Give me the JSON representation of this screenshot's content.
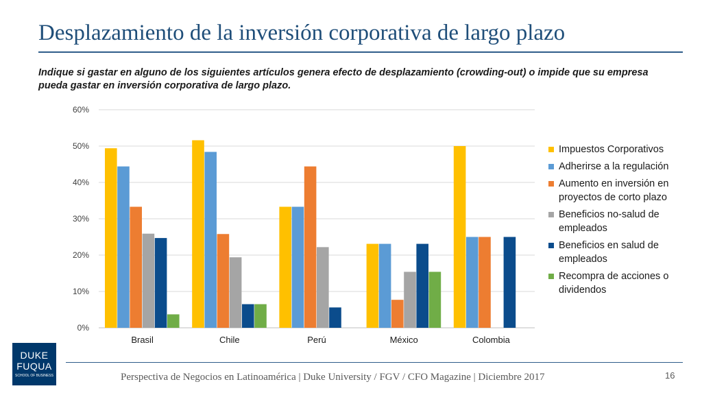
{
  "page": {
    "title": "Desplazamiento de la inversión corporativa de largo plazo",
    "subtitle": "Indique si gastar en alguno de los siguientes artículos genera efecto de desplazamiento (crowding-out) o impide que su empresa pueda gastar en inversión corporativa de largo plazo.",
    "footer": "Perspectiva de Negocios en Latinoamérica | Duke University / FGV / CFO Magazine | Diciembre 2017",
    "page_number": "16",
    "logo": {
      "line1": "DUKE",
      "line2": "FUQUA",
      "line3": "SCHOOL OF BUSINESS",
      "color": "#00386b"
    }
  },
  "chart_data": {
    "type": "bar",
    "title": "",
    "xlabel": "",
    "ylabel": "",
    "ylim": [
      0,
      60
    ],
    "yticks": [
      0,
      10,
      20,
      30,
      40,
      50,
      60
    ],
    "ytick_labels": [
      "0%",
      "10%",
      "20%",
      "30%",
      "40%",
      "50%",
      "60%"
    ],
    "grid": true,
    "legend_position": "right",
    "categories": [
      "Brasil",
      "Chile",
      "Perú",
      "México",
      "Colombia"
    ],
    "series": [
      {
        "name": "Impuestos Corporativos",
        "color": "#ffc000",
        "values": [
          49.4,
          51.6,
          33.3,
          23.1,
          50.0
        ]
      },
      {
        "name": "Adherirse a la regulación",
        "color": "#5b9bd5",
        "values": [
          44.4,
          48.4,
          33.3,
          23.1,
          25.0
        ]
      },
      {
        "name": "Aumento en inversión en proyectos de corto plazo",
        "color": "#ed7d31",
        "values": [
          33.3,
          25.8,
          44.4,
          7.7,
          25.0
        ]
      },
      {
        "name": "Beneficios no-salud de empleados",
        "color": "#a5a5a5",
        "values": [
          25.9,
          19.4,
          22.2,
          15.4,
          0
        ]
      },
      {
        "name": "Beneficios en salud de empleados",
        "color": "#0b4c8c",
        "values": [
          24.7,
          6.5,
          5.6,
          23.1,
          25.0
        ]
      },
      {
        "name": "Recompra de acciones o dividendos",
        "color": "#70ad47",
        "values": [
          3.7,
          6.5,
          0,
          15.4,
          0
        ]
      }
    ]
  }
}
